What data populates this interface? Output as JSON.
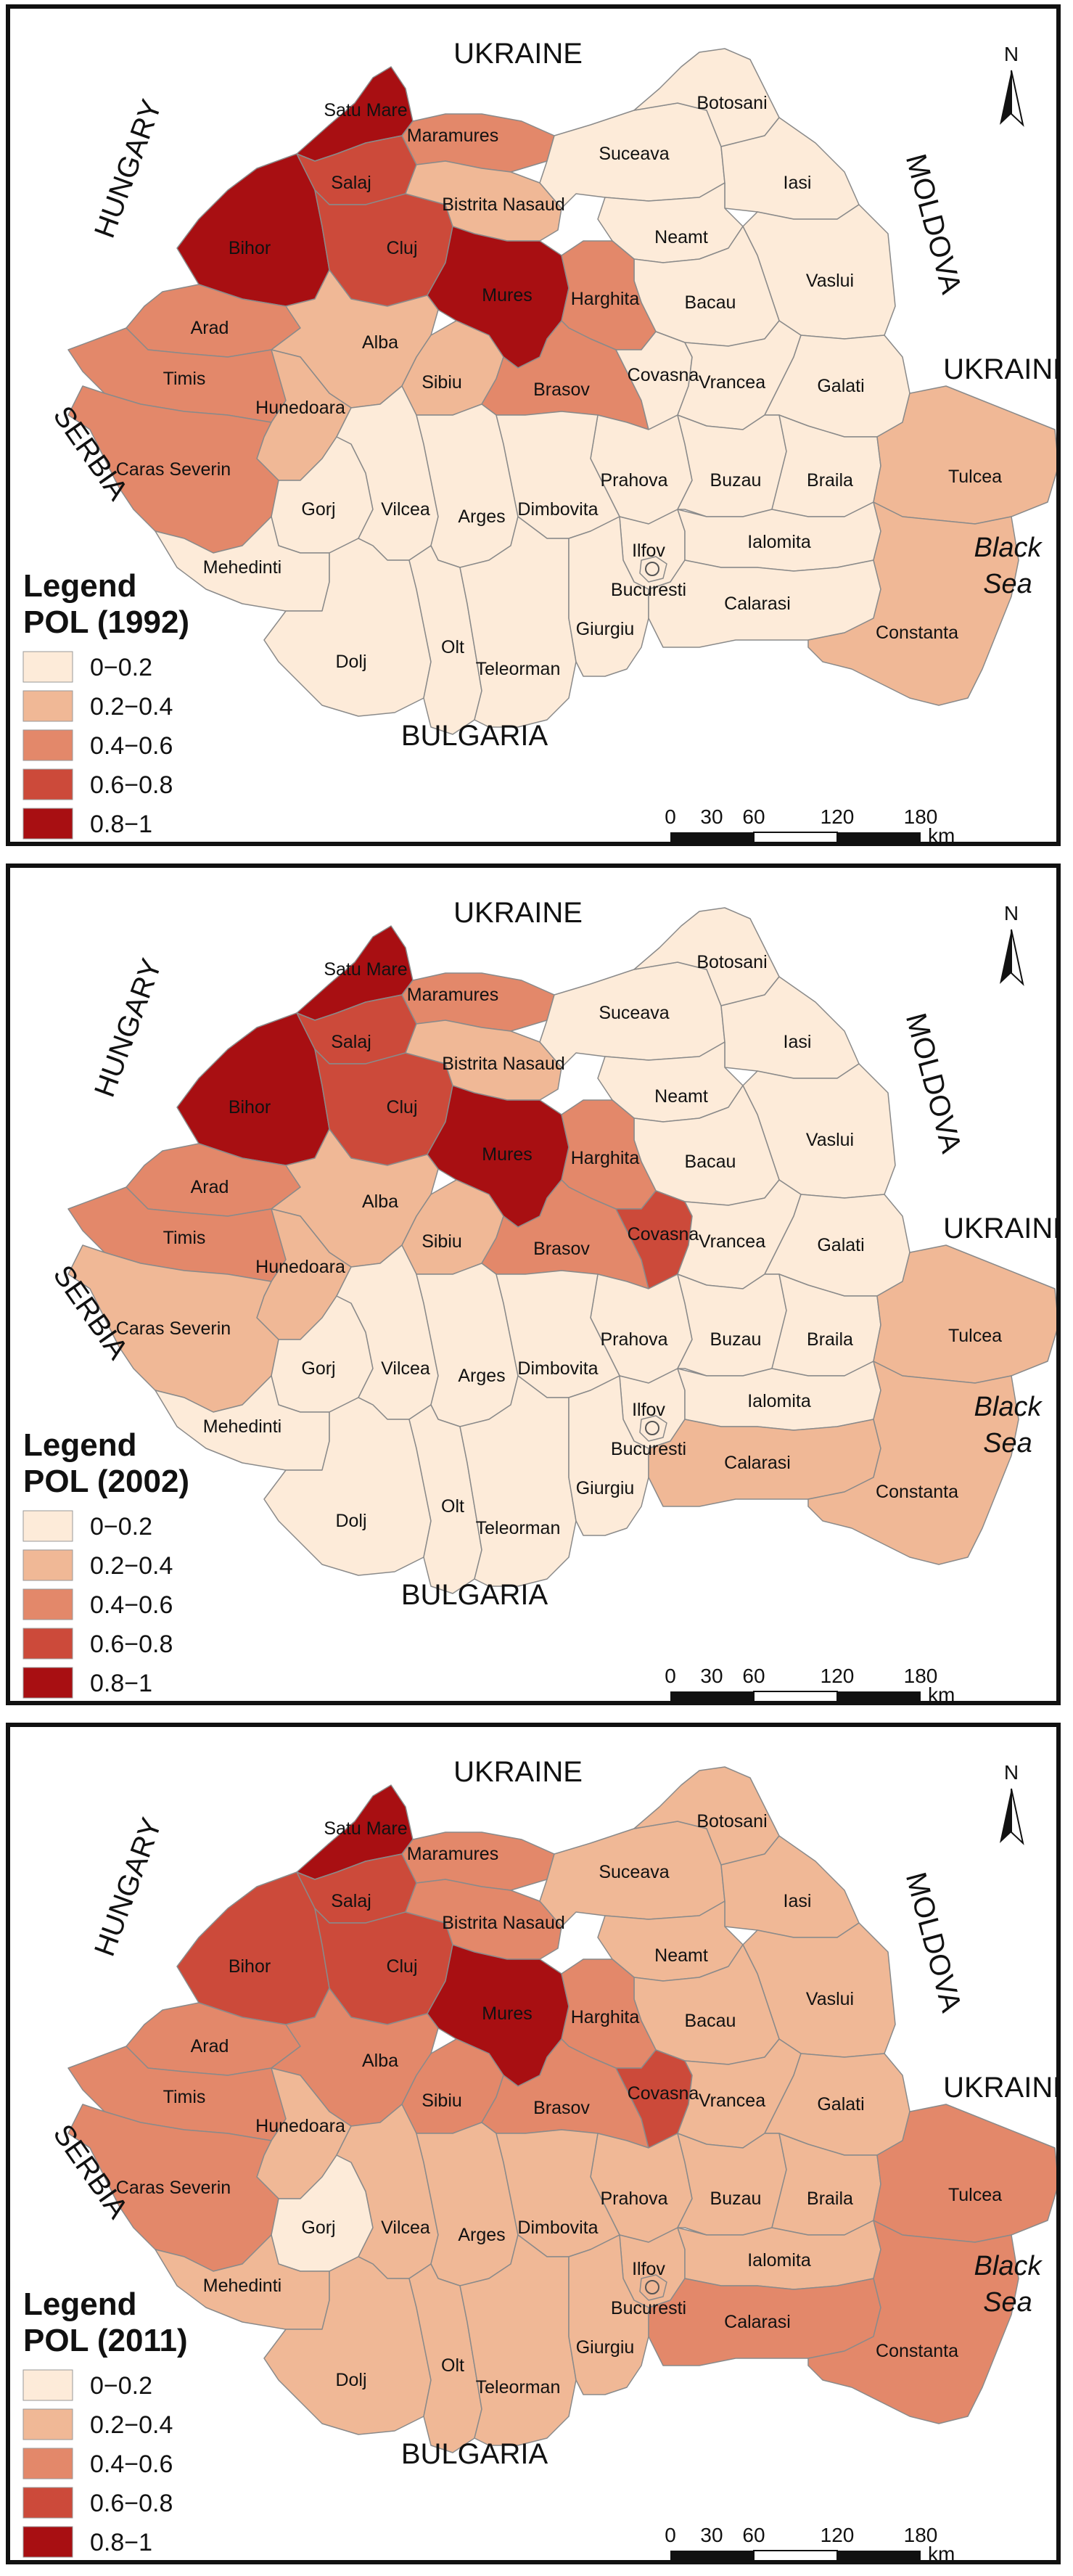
{
  "colors": {
    "c1": "#fdebd9",
    "c2": "#f0b896",
    "c3": "#e3886a",
    "c4": "#cc4a3a",
    "c5": "#a80f12",
    "border": "#8a8a8a"
  },
  "icons": {
    "north_arrow": "north-arrow-icon",
    "capital": "city-symbol-icon"
  },
  "shared": {
    "north": "N",
    "scale_ticks": [
      "0",
      "30",
      "60",
      "120",
      "180"
    ],
    "scale_unit": "km",
    "countries": {
      "ukraine_north": "UKRAINE",
      "ukraine_east": "UKRAINE",
      "hungary": "HUNGARY",
      "serbia": "SERBIA",
      "bulgaria": "BULGARIA",
      "moldova": "MOLDOVA"
    },
    "sea": {
      "line1": "Black",
      "line2": "Sea"
    },
    "legend_title": "Legend",
    "legend_items": [
      "0−0.2",
      "0.2−0.4",
      "0.4−0.6",
      "0.6−0.8",
      "0.8−1"
    ]
  },
  "counties": [
    {
      "id": "satu_mare",
      "name": "Satu Mare"
    },
    {
      "id": "maramures",
      "name": "Maramures"
    },
    {
      "id": "bihor",
      "name": "Bihor"
    },
    {
      "id": "salaj",
      "name": "Salaj"
    },
    {
      "id": "cluj",
      "name": "Cluj"
    },
    {
      "id": "bistrita",
      "name": "Bistrita Nasaud"
    },
    {
      "id": "suceava",
      "name": "Suceava"
    },
    {
      "id": "botosani",
      "name": "Botosani"
    },
    {
      "id": "iasi",
      "name": "Iasi"
    },
    {
      "id": "neamt",
      "name": "Neamt"
    },
    {
      "id": "vaslui",
      "name": "Vaslui"
    },
    {
      "id": "bacau",
      "name": "Bacau"
    },
    {
      "id": "mures",
      "name": "Mures"
    },
    {
      "id": "harghita",
      "name": "Harghita"
    },
    {
      "id": "arad",
      "name": "Arad"
    },
    {
      "id": "alba",
      "name": "Alba"
    },
    {
      "id": "timis",
      "name": "Timis"
    },
    {
      "id": "hunedoara",
      "name": "Hunedoara"
    },
    {
      "id": "sibiu",
      "name": "Sibiu"
    },
    {
      "id": "brasov",
      "name": "Brasov"
    },
    {
      "id": "covasna",
      "name": "Covasna"
    },
    {
      "id": "vrancea",
      "name": "Vrancea"
    },
    {
      "id": "galati",
      "name": "Galati"
    },
    {
      "id": "caras",
      "name": "Caras Severin"
    },
    {
      "id": "gorj",
      "name": "Gorj"
    },
    {
      "id": "vilcea",
      "name": "Vilcea"
    },
    {
      "id": "arges",
      "name": "Arges"
    },
    {
      "id": "prahova",
      "name": "Prahova"
    },
    {
      "id": "buzau",
      "name": "Buzau"
    },
    {
      "id": "braila",
      "name": "Braila"
    },
    {
      "id": "tulcea",
      "name": "Tulcea"
    },
    {
      "id": "dimbovita",
      "name": "Dimbovita"
    },
    {
      "id": "mehedinti",
      "name": "Mehedinti"
    },
    {
      "id": "ilfov",
      "name": "Ilfov"
    },
    {
      "id": "bucuresti",
      "name": "Bucuresti"
    },
    {
      "id": "ialomita",
      "name": "Ialomita"
    },
    {
      "id": "dolj",
      "name": "Dolj"
    },
    {
      "id": "olt",
      "name": "Olt"
    },
    {
      "id": "teleorman",
      "name": "Teleorman"
    },
    {
      "id": "giurgiu",
      "name": "Giurgiu"
    },
    {
      "id": "calarasi",
      "name": "Calarasi"
    },
    {
      "id": "constanta",
      "name": "Constanta"
    }
  ],
  "maps": [
    {
      "legend_subtitle": "POL (1992)",
      "classes": {
        "satu_mare": 5,
        "maramures": 3,
        "bihor": 5,
        "salaj": 4,
        "cluj": 4,
        "bistrita": 2,
        "suceava": 1,
        "botosani": 1,
        "iasi": 1,
        "neamt": 1,
        "vaslui": 1,
        "bacau": 1,
        "mures": 5,
        "harghita": 3,
        "arad": 3,
        "alba": 2,
        "timis": 3,
        "hunedoara": 2,
        "sibiu": 2,
        "brasov": 3,
        "covasna": 1,
        "vrancea": 1,
        "galati": 1,
        "caras": 3,
        "gorj": 1,
        "vilcea": 1,
        "arges": 1,
        "prahova": 1,
        "buzau": 1,
        "braila": 1,
        "tulcea": 2,
        "dimbovita": 1,
        "mehedinti": 1,
        "ilfov": 1,
        "bucuresti": 1,
        "ialomita": 1,
        "dolj": 1,
        "olt": 1,
        "teleorman": 1,
        "giurgiu": 1,
        "calarasi": 1,
        "constanta": 2
      }
    },
    {
      "legend_subtitle": "POL (2002)",
      "classes": {
        "satu_mare": 5,
        "maramures": 3,
        "bihor": 5,
        "salaj": 4,
        "cluj": 4,
        "bistrita": 2,
        "suceava": 1,
        "botosani": 1,
        "iasi": 1,
        "neamt": 1,
        "vaslui": 1,
        "bacau": 1,
        "mures": 5,
        "harghita": 3,
        "arad": 3,
        "alba": 2,
        "timis": 3,
        "hunedoara": 2,
        "sibiu": 2,
        "brasov": 3,
        "covasna": 4,
        "vrancea": 1,
        "galati": 1,
        "caras": 2,
        "gorj": 1,
        "vilcea": 1,
        "arges": 1,
        "prahova": 1,
        "buzau": 1,
        "braila": 1,
        "tulcea": 2,
        "dimbovita": 1,
        "mehedinti": 1,
        "ilfov": 1,
        "bucuresti": 1,
        "ialomita": 1,
        "dolj": 1,
        "olt": 1,
        "teleorman": 1,
        "giurgiu": 1,
        "calarasi": 2,
        "constanta": 2
      }
    },
    {
      "legend_subtitle": "POL (2011)",
      "classes": {
        "satu_mare": 5,
        "maramures": 3,
        "bihor": 4,
        "salaj": 4,
        "cluj": 4,
        "bistrita": 3,
        "suceava": 2,
        "botosani": 2,
        "iasi": 2,
        "neamt": 2,
        "vaslui": 2,
        "bacau": 2,
        "mures": 5,
        "harghita": 3,
        "arad": 3,
        "alba": 3,
        "timis": 3,
        "hunedoara": 2,
        "sibiu": 3,
        "brasov": 3,
        "covasna": 4,
        "vrancea": 2,
        "galati": 2,
        "caras": 3,
        "gorj": 1,
        "vilcea": 2,
        "arges": 2,
        "prahova": 2,
        "buzau": 2,
        "braila": 2,
        "tulcea": 3,
        "dimbovita": 2,
        "mehedinti": 2,
        "ilfov": 2,
        "bucuresti": 2,
        "ialomita": 2,
        "dolj": 2,
        "olt": 2,
        "teleorman": 2,
        "giurgiu": 2,
        "calarasi": 3,
        "constanta": 3
      }
    }
  ]
}
